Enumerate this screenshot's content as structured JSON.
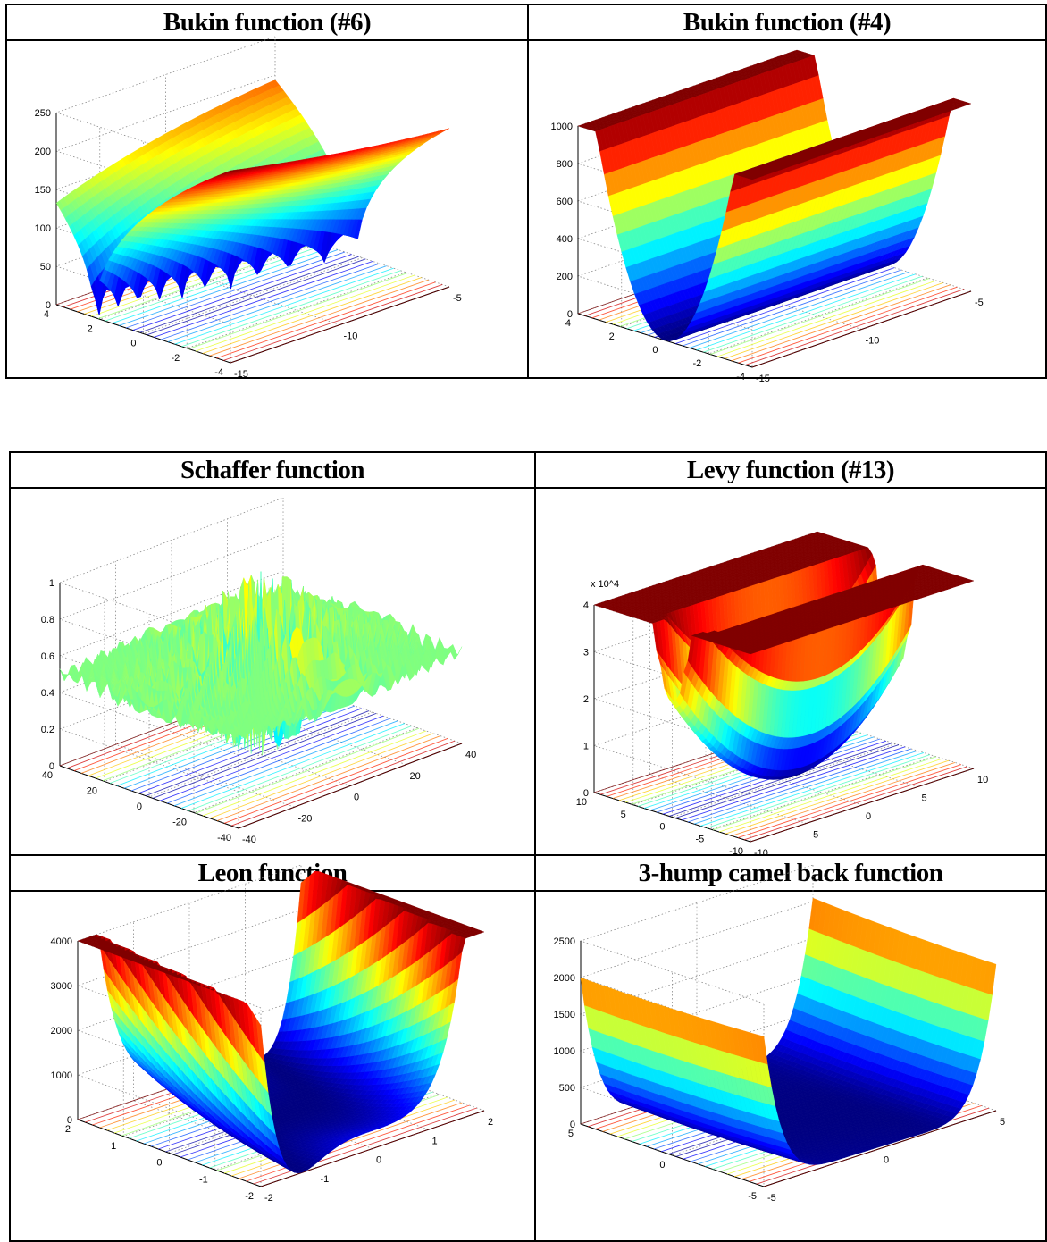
{
  "panels": [
    {
      "id": "bukin6",
      "title": "Bukin function (#6)",
      "chart_data": {
        "type": "surface3d",
        "title": "Bukin function (#6)",
        "x_ticks": [
          "-15",
          "-10",
          "-5"
        ],
        "y_ticks": [
          "-4",
          "-2",
          "0",
          "2",
          "4"
        ],
        "z_ticks": [
          "0",
          "50",
          "100",
          "150",
          "200",
          "250"
        ],
        "xlim": [
          -15,
          -5
        ],
        "ylim": [
          -4,
          4
        ],
        "zlim": [
          0,
          250
        ],
        "contour_projection": true,
        "colormap": "jet"
      }
    },
    {
      "id": "bukin4",
      "title": "Bukin function (#4)",
      "chart_data": {
        "type": "surface3d",
        "title": "Bukin function (#4)",
        "x_ticks": [
          "-15",
          "-10",
          "-5"
        ],
        "y_ticks": [
          "-4",
          "-2",
          "0",
          "2",
          "4"
        ],
        "z_ticks": [
          "0",
          "200",
          "400",
          "600",
          "800",
          "1000"
        ],
        "xlim": [
          -15,
          -5
        ],
        "ylim": [
          -4,
          4
        ],
        "zlim": [
          0,
          1000
        ],
        "contour_projection": true,
        "colormap": "jet"
      }
    },
    {
      "id": "schaffer",
      "title": "Schaffer function",
      "chart_data": {
        "type": "surface3d",
        "title": "Schaffer function",
        "x_ticks": [
          "-40",
          "-20",
          "0",
          "20",
          "40"
        ],
        "y_ticks": [
          "-40",
          "-20",
          "0",
          "20",
          "40"
        ],
        "z_ticks": [
          "0",
          "0.2",
          "0.4",
          "0.6",
          "0.8",
          "1"
        ],
        "xlim": [
          -40,
          40
        ],
        "ylim": [
          -40,
          40
        ],
        "zlim": [
          0,
          1
        ],
        "contour_projection": true,
        "colormap": "jet"
      }
    },
    {
      "id": "levy13",
      "title": "Levy function (#13)",
      "chart_data": {
        "type": "surface3d",
        "title": "Levy function (#13)",
        "x_ticks": [
          "-10",
          "-5",
          "0",
          "5",
          "10"
        ],
        "y_ticks": [
          "-10",
          "-5",
          "0",
          "5",
          "10"
        ],
        "z_ticks": [
          "0",
          "1",
          "2",
          "3",
          "4"
        ],
        "z_multiplier": "x 10^4",
        "xlim": [
          -10,
          10
        ],
        "ylim": [
          -10,
          10
        ],
        "zlim": [
          0,
          4
        ],
        "contour_projection": true,
        "colormap": "jet"
      }
    },
    {
      "id": "leon",
      "title": "Leon function",
      "chart_data": {
        "type": "surface3d",
        "title": "Leon function",
        "x_ticks": [
          "-2",
          "-1",
          "0",
          "1",
          "2"
        ],
        "y_ticks": [
          "-2",
          "-1",
          "0",
          "1",
          "2"
        ],
        "z_ticks": [
          "0",
          "1000",
          "2000",
          "3000",
          "4000"
        ],
        "xlim": [
          -2,
          2
        ],
        "ylim": [
          -2,
          2
        ],
        "zlim": [
          0,
          4000
        ],
        "contour_projection": true,
        "colormap": "jet"
      }
    },
    {
      "id": "camel3",
      "title": "3-hump camel back function",
      "chart_data": {
        "type": "surface3d",
        "title": "3-hump camel back function",
        "x_ticks": [
          "-5",
          "0",
          "5"
        ],
        "y_ticks": [
          "-5",
          "0",
          "5"
        ],
        "z_ticks": [
          "0",
          "500",
          "1000",
          "1500",
          "2000",
          "2500"
        ],
        "xlim": [
          -5,
          5
        ],
        "ylim": [
          -5,
          5
        ],
        "zlim": [
          0,
          2500
        ],
        "contour_projection": true,
        "colormap": "jet"
      }
    }
  ]
}
